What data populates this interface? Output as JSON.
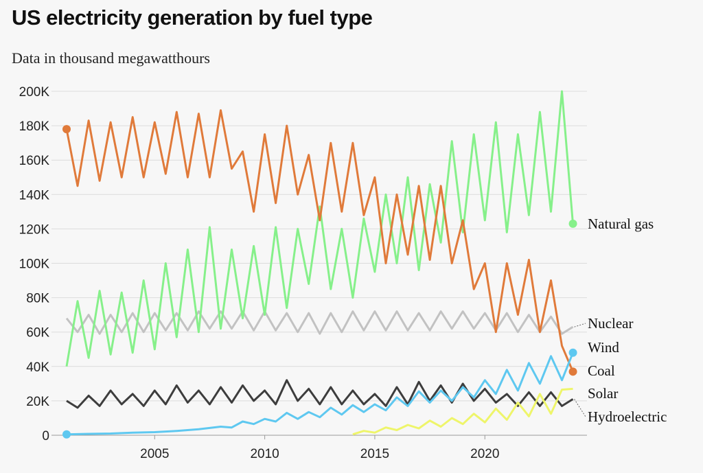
{
  "title": "US electricity generation by fuel type",
  "subtitle": "Data in thousand megawatthours",
  "chart_data": {
    "type": "line",
    "x_unit": "year",
    "xlim": [
      2001.0,
      2024.17
    ],
    "ylim": [
      0,
      200000
    ],
    "y_ticks": [
      0,
      20000,
      40000,
      60000,
      80000,
      100000,
      120000,
      140000,
      160000,
      180000,
      200000
    ],
    "y_tick_labels": [
      "0",
      "20K",
      "40K",
      "60K",
      "80K",
      "100K",
      "120K",
      "140K",
      "160K",
      "180K",
      "200K"
    ],
    "x_ticks": [
      2005,
      2010,
      2015,
      2020
    ],
    "x_tick_labels": [
      "2005",
      "2010",
      "2015",
      "2020"
    ],
    "grid": "horizontal",
    "legend": "direct labels at right end",
    "series": [
      {
        "name": "Natural gas",
        "color": "#86f08a",
        "x": [
          2001.0,
          2001.5,
          2002.0,
          2002.5,
          2003.0,
          2003.5,
          2004.0,
          2004.5,
          2005.0,
          2005.5,
          2006.0,
          2006.5,
          2007.0,
          2007.5,
          2008.0,
          2008.5,
          2009.0,
          2009.5,
          2010.0,
          2010.5,
          2011.0,
          2011.5,
          2012.0,
          2012.5,
          2013.0,
          2013.5,
          2014.0,
          2014.5,
          2015.0,
          2015.5,
          2016.0,
          2016.5,
          2017.0,
          2017.5,
          2018.0,
          2018.5,
          2019.0,
          2019.5,
          2020.0,
          2020.5,
          2021.0,
          2021.5,
          2022.0,
          2022.5,
          2023.0,
          2023.5,
          2024.0
        ],
        "y": [
          40000,
          78000,
          45000,
          84000,
          47000,
          83000,
          48000,
          90000,
          50000,
          100000,
          57000,
          108000,
          60000,
          121000,
          62000,
          108000,
          68000,
          110000,
          70000,
          121000,
          74000,
          120000,
          88000,
          133000,
          85000,
          120000,
          80000,
          126000,
          95000,
          140000,
          100000,
          150000,
          96000,
          146000,
          112000,
          171000,
          118000,
          175000,
          125000,
          182000,
          118000,
          175000,
          128000,
          188000,
          130000,
          200000,
          123000
        ]
      },
      {
        "name": "Nuclear",
        "color": "#c2c2c2",
        "x": [
          2001.0,
          2001.5,
          2002.0,
          2002.5,
          2003.0,
          2003.5,
          2004.0,
          2004.5,
          2005.0,
          2005.5,
          2006.0,
          2006.5,
          2007.0,
          2007.5,
          2008.0,
          2008.5,
          2009.0,
          2009.5,
          2010.0,
          2010.5,
          2011.0,
          2011.5,
          2012.0,
          2012.5,
          2013.0,
          2013.5,
          2014.0,
          2014.5,
          2015.0,
          2015.5,
          2016.0,
          2016.5,
          2017.0,
          2017.5,
          2018.0,
          2018.5,
          2019.0,
          2019.5,
          2020.0,
          2020.5,
          2021.0,
          2021.5,
          2022.0,
          2022.5,
          2023.0,
          2023.5,
          2024.0
        ],
        "y": [
          68000,
          60000,
          70000,
          59000,
          70000,
          60000,
          71000,
          60000,
          71000,
          61000,
          71000,
          61000,
          72000,
          62000,
          72000,
          62000,
          72000,
          61000,
          72000,
          61000,
          71000,
          60000,
          71000,
          59000,
          71000,
          60000,
          72000,
          61000,
          72000,
          61000,
          72000,
          61000,
          71000,
          61000,
          72000,
          62000,
          72000,
          62000,
          71000,
          61000,
          71000,
          60000,
          70000,
          60000,
          69000,
          59000,
          63000
        ]
      },
      {
        "name": "Wind",
        "color": "#5ec8f0",
        "x": [
          2001.0,
          2002.0,
          2003.0,
          2004.0,
          2005.0,
          2006.0,
          2007.0,
          2008.0,
          2008.5,
          2009.0,
          2009.5,
          2010.0,
          2010.5,
          2011.0,
          2011.5,
          2012.0,
          2012.5,
          2013.0,
          2013.5,
          2014.0,
          2014.5,
          2015.0,
          2015.5,
          2016.0,
          2016.5,
          2017.0,
          2017.5,
          2018.0,
          2018.5,
          2019.0,
          2019.5,
          2020.0,
          2020.5,
          2021.0,
          2021.5,
          2022.0,
          2022.5,
          2023.0,
          2023.5,
          2024.0
        ],
        "y": [
          500,
          800,
          1000,
          1500,
          1800,
          2500,
          3500,
          5000,
          4500,
          8000,
          6500,
          9500,
          8000,
          13000,
          9500,
          13500,
          10500,
          16000,
          12000,
          17500,
          13500,
          18000,
          14500,
          22000,
          17000,
          25500,
          19000,
          26000,
          20000,
          28000,
          22000,
          32000,
          24000,
          38000,
          26000,
          42000,
          30000,
          46000,
          32000,
          48000
        ]
      },
      {
        "name": "Coal",
        "color": "#e07a3a",
        "x": [
          2001.0,
          2001.5,
          2002.0,
          2002.5,
          2003.0,
          2003.5,
          2004.0,
          2004.5,
          2005.0,
          2005.5,
          2006.0,
          2006.5,
          2007.0,
          2007.5,
          2008.0,
          2008.5,
          2009.0,
          2009.5,
          2010.0,
          2010.5,
          2011.0,
          2011.5,
          2012.0,
          2012.5,
          2013.0,
          2013.5,
          2014.0,
          2014.5,
          2015.0,
          2015.5,
          2016.0,
          2016.5,
          2017.0,
          2017.5,
          2018.0,
          2018.5,
          2019.0,
          2019.5,
          2020.0,
          2020.5,
          2021.0,
          2021.5,
          2022.0,
          2022.5,
          2023.0,
          2023.5,
          2024.0
        ],
        "y": [
          178000,
          145000,
          183000,
          148000,
          182000,
          150000,
          185000,
          150000,
          182000,
          152000,
          188000,
          150000,
          187000,
          150000,
          189000,
          155000,
          165000,
          130000,
          175000,
          135000,
          180000,
          140000,
          163000,
          125000,
          170000,
          130000,
          170000,
          128000,
          150000,
          100000,
          140000,
          105000,
          145000,
          102000,
          145000,
          100000,
          125000,
          85000,
          100000,
          60000,
          100000,
          70000,
          102000,
          60000,
          90000,
          52000,
          37000
        ]
      },
      {
        "name": "Solar",
        "color": "#eef56a",
        "x": [
          2014.0,
          2014.5,
          2015.0,
          2015.5,
          2016.0,
          2016.5,
          2017.0,
          2017.5,
          2018.0,
          2018.5,
          2019.0,
          2019.5,
          2020.0,
          2020.5,
          2021.0,
          2021.5,
          2022.0,
          2022.5,
          2023.0,
          2023.5,
          2024.0
        ],
        "y": [
          500,
          2500,
          1500,
          4500,
          3000,
          6000,
          4000,
          8500,
          5000,
          10000,
          6500,
          12500,
          7500,
          15500,
          9000,
          19000,
          11000,
          24000,
          12500,
          26500,
          27000
        ]
      },
      {
        "name": "Hydroelectric",
        "color": "#3d3d3d",
        "x": [
          2001.0,
          2001.5,
          2002.0,
          2002.5,
          2003.0,
          2003.5,
          2004.0,
          2004.5,
          2005.0,
          2005.5,
          2006.0,
          2006.5,
          2007.0,
          2007.5,
          2008.0,
          2008.5,
          2009.0,
          2009.5,
          2010.0,
          2010.5,
          2011.0,
          2011.5,
          2012.0,
          2012.5,
          2013.0,
          2013.5,
          2014.0,
          2014.5,
          2015.0,
          2015.5,
          2016.0,
          2016.5,
          2017.0,
          2017.5,
          2018.0,
          2018.5,
          2019.0,
          2019.5,
          2020.0,
          2020.5,
          2021.0,
          2021.5,
          2022.0,
          2022.5,
          2023.0,
          2023.5,
          2024.0
        ],
        "y": [
          20000,
          16000,
          23000,
          17000,
          26000,
          18000,
          24000,
          17000,
          26000,
          18000,
          29000,
          19000,
          26000,
          18000,
          28000,
          19000,
          29000,
          20000,
          26000,
          18000,
          32000,
          20000,
          27000,
          18000,
          28000,
          18000,
          26000,
          18000,
          24000,
          17000,
          28000,
          18000,
          31000,
          20000,
          29000,
          19000,
          30000,
          20000,
          27000,
          19000,
          24000,
          17000,
          25000,
          17000,
          25000,
          17000,
          21000
        ]
      }
    ]
  }
}
